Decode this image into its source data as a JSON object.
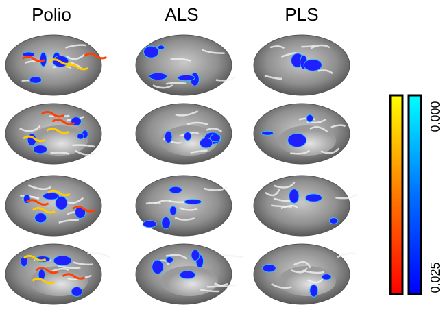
{
  "columns": [
    "Polio",
    "ALS",
    "PLS"
  ],
  "colorbar": {
    "top_label": "0.000",
    "bottom_label": "0.025"
  }
}
